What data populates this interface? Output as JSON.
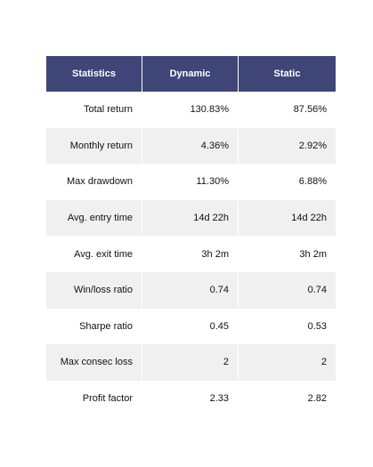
{
  "table": {
    "headers": [
      "Statistics",
      "Dynamic",
      "Static"
    ],
    "rows": [
      [
        "Total return",
        "130.83%",
        "87.56%"
      ],
      [
        "Monthly return",
        "4.36%",
        "2.92%"
      ],
      [
        "Max drawdown",
        "11.30%",
        "6.88%"
      ],
      [
        "Avg. entry time",
        "14d 22h",
        "14d 22h"
      ],
      [
        "Avg. exit time",
        "3h 2m",
        "3h 2m"
      ],
      [
        "Win/loss ratio",
        "0.74",
        "0.74"
      ],
      [
        "Sharpe ratio",
        "0.45",
        "0.53"
      ],
      [
        "Max consec loss",
        "2",
        "2"
      ],
      [
        "Profit factor",
        "2.33",
        "2.82"
      ]
    ]
  },
  "colors": {
    "header_background": "#3f4576",
    "header_text": "#ffffff",
    "stripe": "#f0f0f0"
  }
}
